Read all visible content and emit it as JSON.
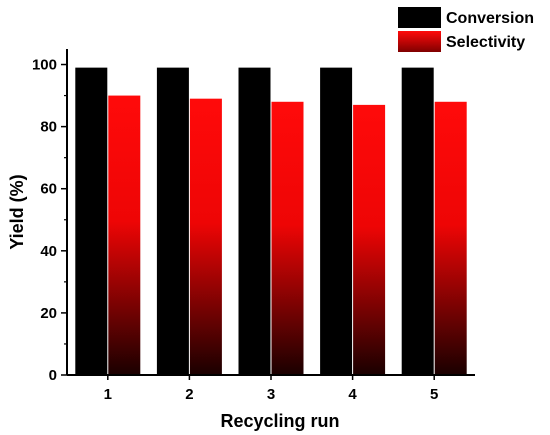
{
  "chart_data": {
    "type": "bar",
    "title": "",
    "xlabel": "Recycling run",
    "ylabel": "Yield (%)",
    "categories": [
      "1",
      "2",
      "3",
      "4",
      "5"
    ],
    "series": [
      {
        "name": "Conversion",
        "values": [
          99,
          99,
          99,
          99,
          99
        ],
        "color": "#000000"
      },
      {
        "name": "Selectivity",
        "values": [
          90,
          89,
          88,
          87,
          88
        ],
        "color": "#ff0000"
      }
    ],
    "ylim": [
      0,
      105
    ],
    "yticks": [
      0,
      20,
      40,
      60,
      80,
      100
    ],
    "grid": false,
    "legend_position": "top-right"
  }
}
